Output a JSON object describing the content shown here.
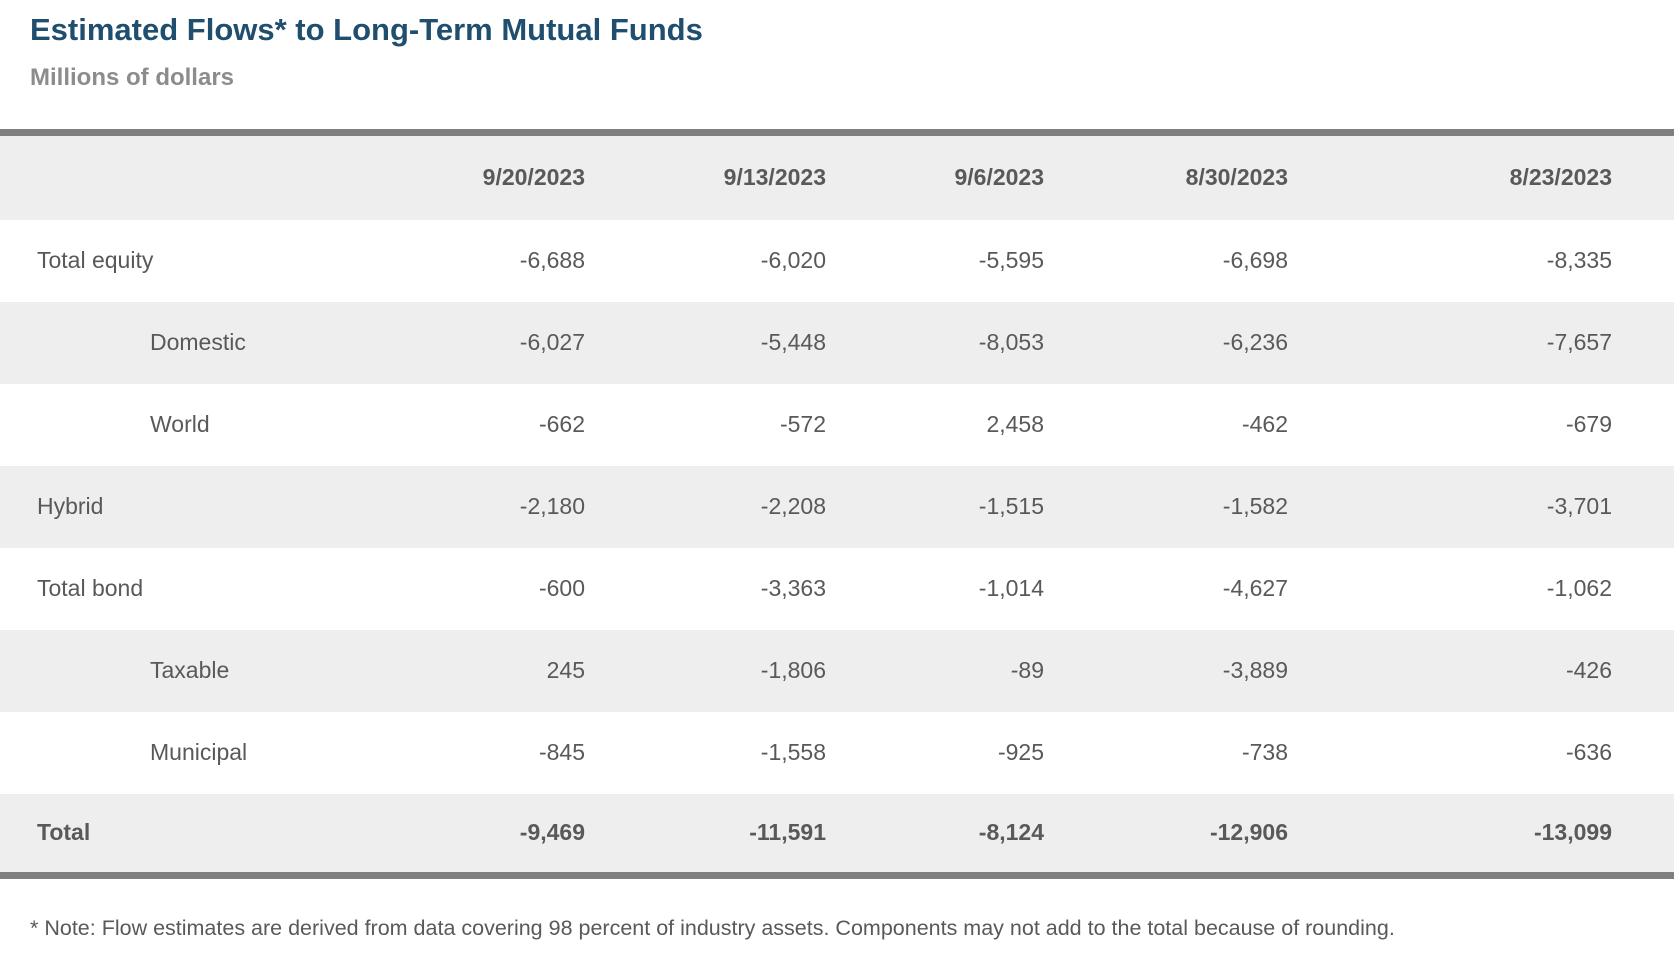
{
  "page": {
    "title": "Estimated Flows* to Long-Term Mutual Funds",
    "subtitle": "Millions of dollars",
    "footnote": "* Note: Flow estimates are derived from data covering 98 percent of industry assets. Components may not add to the total because of rounding."
  },
  "colors": {
    "title": "#1F4E6E",
    "subtitle": "#8C8C8C",
    "text": "#595959",
    "stripe": "#EEEEEE",
    "rule": "#7F7F7F",
    "background": "#FFFFFF"
  },
  "chart_data": {
    "type": "table",
    "title": "Estimated Flows* to Long-Term Mutual Funds",
    "units": "Millions of dollars",
    "columns": [
      "",
      "9/20/2023",
      "9/13/2023",
      "9/6/2023",
      "8/30/2023",
      "8/23/2023"
    ],
    "rows": [
      {
        "label": "Total equity",
        "indent": 0,
        "bold": false,
        "values": [
          "-6,688",
          "-6,020",
          "-5,595",
          "-6,698",
          "-8,335"
        ]
      },
      {
        "label": "Domestic",
        "indent": 1,
        "bold": false,
        "values": [
          "-6,027",
          "-5,448",
          "-8,053",
          "-6,236",
          "-7,657"
        ]
      },
      {
        "label": "World",
        "indent": 1,
        "bold": false,
        "values": [
          "-662",
          "-572",
          "2,458",
          "-462",
          "-679"
        ]
      },
      {
        "label": "Hybrid",
        "indent": 0,
        "bold": false,
        "values": [
          "-2,180",
          "-2,208",
          "-1,515",
          "-1,582",
          "-3,701"
        ]
      },
      {
        "label": "Total bond",
        "indent": 0,
        "bold": false,
        "values": [
          "-600",
          "-3,363",
          "-1,014",
          "-4,627",
          "-1,062"
        ]
      },
      {
        "label": "Taxable",
        "indent": 1,
        "bold": false,
        "values": [
          "245",
          "-1,806",
          "-89",
          "-3,889",
          "-426"
        ]
      },
      {
        "label": "Municipal",
        "indent": 1,
        "bold": false,
        "values": [
          "-845",
          "-1,558",
          "-925",
          "-738",
          "-636"
        ]
      },
      {
        "label": "Total",
        "indent": 0,
        "bold": true,
        "values": [
          "-9,469",
          "-11,591",
          "-8,124",
          "-12,906",
          "-13,099"
        ]
      }
    ]
  }
}
